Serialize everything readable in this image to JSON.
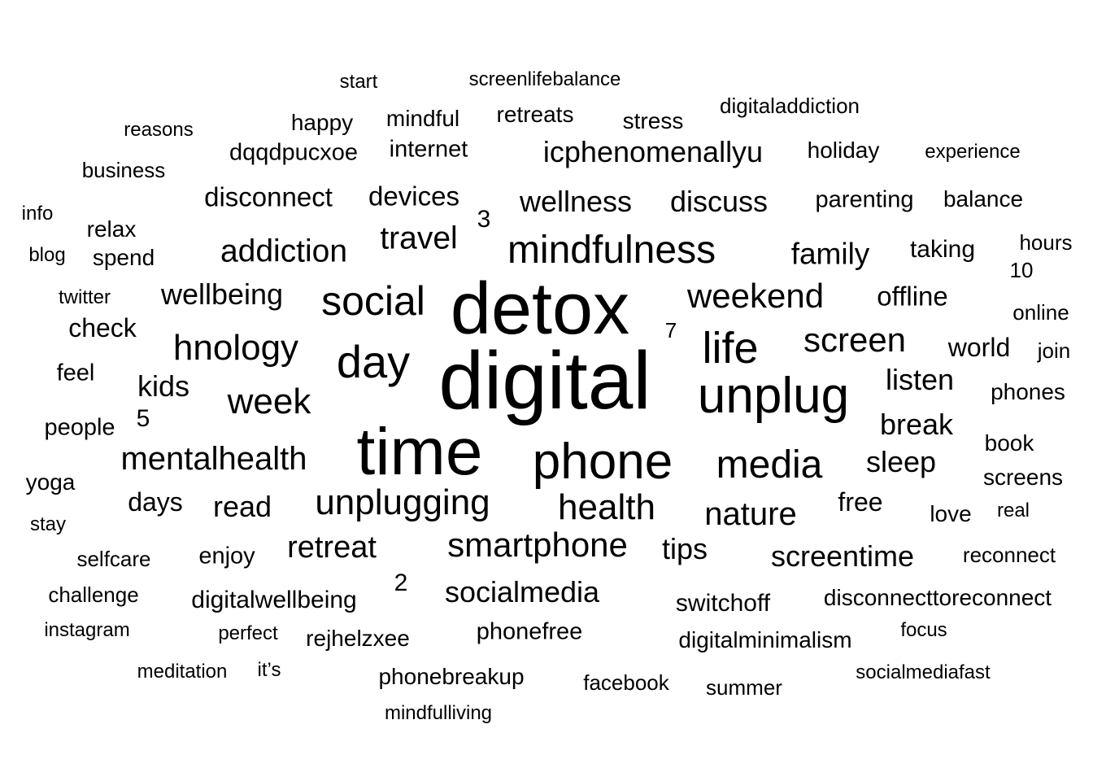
{
  "words": [
    {
      "text": "digital",
      "weight": 100
    },
    {
      "text": "detox",
      "weight": 90
    },
    {
      "text": "time",
      "weight": 82
    },
    {
      "text": "unplug",
      "weight": 62
    },
    {
      "text": "phone",
      "weight": 62
    },
    {
      "text": "mindfulness",
      "weight": 46
    },
    {
      "text": "day",
      "weight": 48
    },
    {
      "text": "life",
      "weight": 46
    },
    {
      "text": "social",
      "weight": 44
    },
    {
      "text": "media",
      "weight": 44
    },
    {
      "text": "health",
      "weight": 38
    },
    {
      "text": "hnology",
      "weight": 38
    },
    {
      "text": "unplugging",
      "weight": 38
    },
    {
      "text": "week",
      "weight": 38
    },
    {
      "text": "smartphone",
      "weight": 37
    },
    {
      "text": "screen",
      "weight": 36
    },
    {
      "text": "weekend",
      "weight": 36
    },
    {
      "text": "nature",
      "weight": 34
    },
    {
      "text": "mentalhealth",
      "weight": 34
    },
    {
      "text": "addiction",
      "weight": 32
    },
    {
      "text": "travel",
      "weight": 32
    },
    {
      "text": "family",
      "weight": 32
    },
    {
      "text": "retreat",
      "weight": 32
    },
    {
      "text": "screentime",
      "weight": 31
    },
    {
      "text": "icphenomenallyu",
      "weight": 31
    },
    {
      "text": "wellness",
      "weight": 31
    },
    {
      "text": "discuss",
      "weight": 31
    },
    {
      "text": "listen",
      "weight": 31
    },
    {
      "text": "break",
      "weight": 31
    },
    {
      "text": "sleep",
      "weight": 31
    },
    {
      "text": "socialmedia",
      "weight": 31
    },
    {
      "text": "wellbeing",
      "weight": 31
    },
    {
      "text": "kids",
      "weight": 31
    },
    {
      "text": "read",
      "weight": 31
    },
    {
      "text": "tips",
      "weight": 31
    },
    {
      "text": "devices",
      "weight": 28
    },
    {
      "text": "disconnect",
      "weight": 28
    },
    {
      "text": "offline",
      "weight": 28
    },
    {
      "text": "world",
      "weight": 27
    },
    {
      "text": "days",
      "weight": 27
    },
    {
      "text": "free",
      "weight": 27
    },
    {
      "text": "check",
      "weight": 27
    },
    {
      "text": "taking",
      "weight": 25
    },
    {
      "text": "switchoff",
      "weight": 25
    },
    {
      "text": "digitalwellbeing",
      "weight": 25
    },
    {
      "text": "parenting",
      "weight": 24
    },
    {
      "text": "phonefree",
      "weight": 24
    },
    {
      "text": "enjoy",
      "weight": 24
    },
    {
      "text": "people",
      "weight": 24
    },
    {
      "text": "feel",
      "weight": 24
    },
    {
      "text": "internet",
      "weight": 24
    },
    {
      "text": "dqqdpucxoe",
      "weight": 24
    },
    {
      "text": "digitalminimalism",
      "weight": 23
    },
    {
      "text": "rejhelzxee",
      "weight": 23
    },
    {
      "text": "phonebreakup",
      "weight": 23
    },
    {
      "text": "disconnecttoreconnect",
      "weight": 23
    },
    {
      "text": "love",
      "weight": 23
    },
    {
      "text": "book",
      "weight": 23
    },
    {
      "text": "phones",
      "weight": 23
    },
    {
      "text": "screens",
      "weight": 23
    },
    {
      "text": "balance",
      "weight": 23
    },
    {
      "text": "holiday",
      "weight": 23
    },
    {
      "text": "stress",
      "weight": 23
    },
    {
      "text": "happy",
      "weight": 23
    },
    {
      "text": "mindful",
      "weight": 23
    },
    {
      "text": "retreats",
      "weight": 23
    },
    {
      "text": "relax",
      "weight": 23
    },
    {
      "text": "spend",
      "weight": 23
    },
    {
      "text": "yoga",
      "weight": 23
    },
    {
      "text": "selfcare",
      "weight": 21
    },
    {
      "text": "facebook",
      "weight": 21
    },
    {
      "text": "summer",
      "weight": 21
    },
    {
      "text": "reconnect",
      "weight": 21
    },
    {
      "text": "challenge",
      "weight": 21
    },
    {
      "text": "business",
      "weight": 21
    },
    {
      "text": "digitaladdiction",
      "weight": 21
    },
    {
      "text": "online",
      "weight": 21
    },
    {
      "text": "join",
      "weight": 21
    },
    {
      "text": "hours",
      "weight": 21
    },
    {
      "text": "twitter",
      "weight": 20
    },
    {
      "text": "reasons",
      "weight": 20
    },
    {
      "text": "experience",
      "weight": 20
    },
    {
      "text": "instagram",
      "weight": 20
    },
    {
      "text": "meditation",
      "weight": 20
    },
    {
      "text": "perfect",
      "weight": 20
    },
    {
      "text": "socialmediafast",
      "weight": 20
    },
    {
      "text": "mindfulliving",
      "weight": 20
    },
    {
      "text": "focus",
      "weight": 20
    },
    {
      "text": "real",
      "weight": 20
    },
    {
      "text": "stay",
      "weight": 20
    },
    {
      "text": "blog",
      "weight": 20
    },
    {
      "text": "info",
      "weight": 20
    },
    {
      "text": "start",
      "weight": 20
    },
    {
      "text": "screenlifebalance",
      "weight": 20
    },
    {
      "text": "it’s",
      "weight": 20
    },
    {
      "text": "2",
      "weight": 23
    },
    {
      "text": "3",
      "weight": 23
    },
    {
      "text": "5",
      "weight": 23
    },
    {
      "text": "7",
      "weight": 20
    },
    {
      "text": "10",
      "weight": 20
    }
  ]
}
